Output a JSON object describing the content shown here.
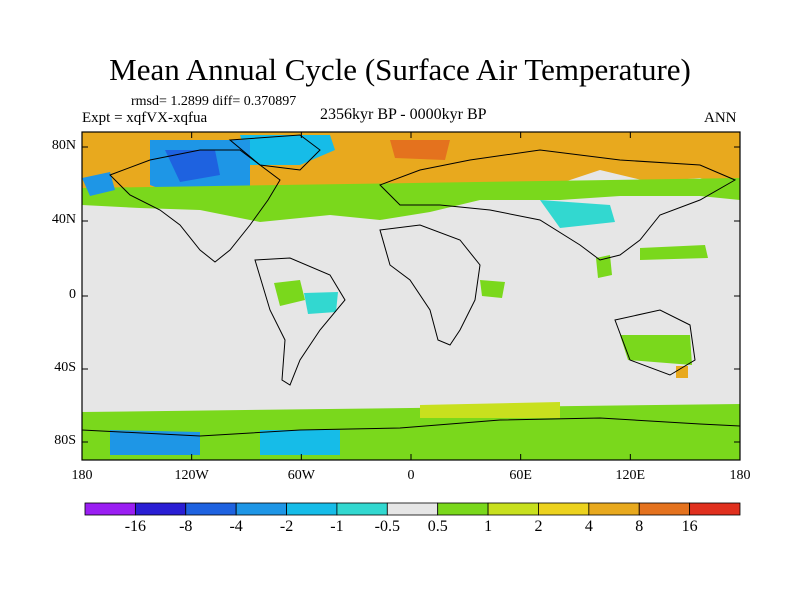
{
  "title": "Mean Annual Cycle (Surface Air Temperature)",
  "stats": "rmsd= 1.2899 diff= 0.370897",
  "experiment": "Expt = xqfVX-xqfua",
  "period": "2356kyr BP - 0000kyr BP",
  "season": "ANN",
  "lat_labels": [
    "80N",
    "40N",
    "0",
    "40S",
    "80S"
  ],
  "lon_labels": [
    "180",
    "120W",
    "60W",
    "0",
    "60E",
    "120E",
    "180"
  ],
  "colorbar": {
    "colors": [
      "#9a1ef2",
      "#2a1ed4",
      "#1e62e0",
      "#1e96e6",
      "#16bce8",
      "#32d8d0",
      "#e6e6e6",
      "#7ad81c",
      "#c8e01e",
      "#ecd21e",
      "#e8a91e",
      "#e4721e",
      "#e0301e"
    ],
    "labels": [
      "-16",
      "-8",
      "-4",
      "-2",
      "-1",
      "-0.5",
      "0.5",
      "1",
      "2",
      "4",
      "8",
      "16"
    ]
  },
  "map": {
    "background_color": "#e6e6e6",
    "land_outline_color": "#000000"
  }
}
